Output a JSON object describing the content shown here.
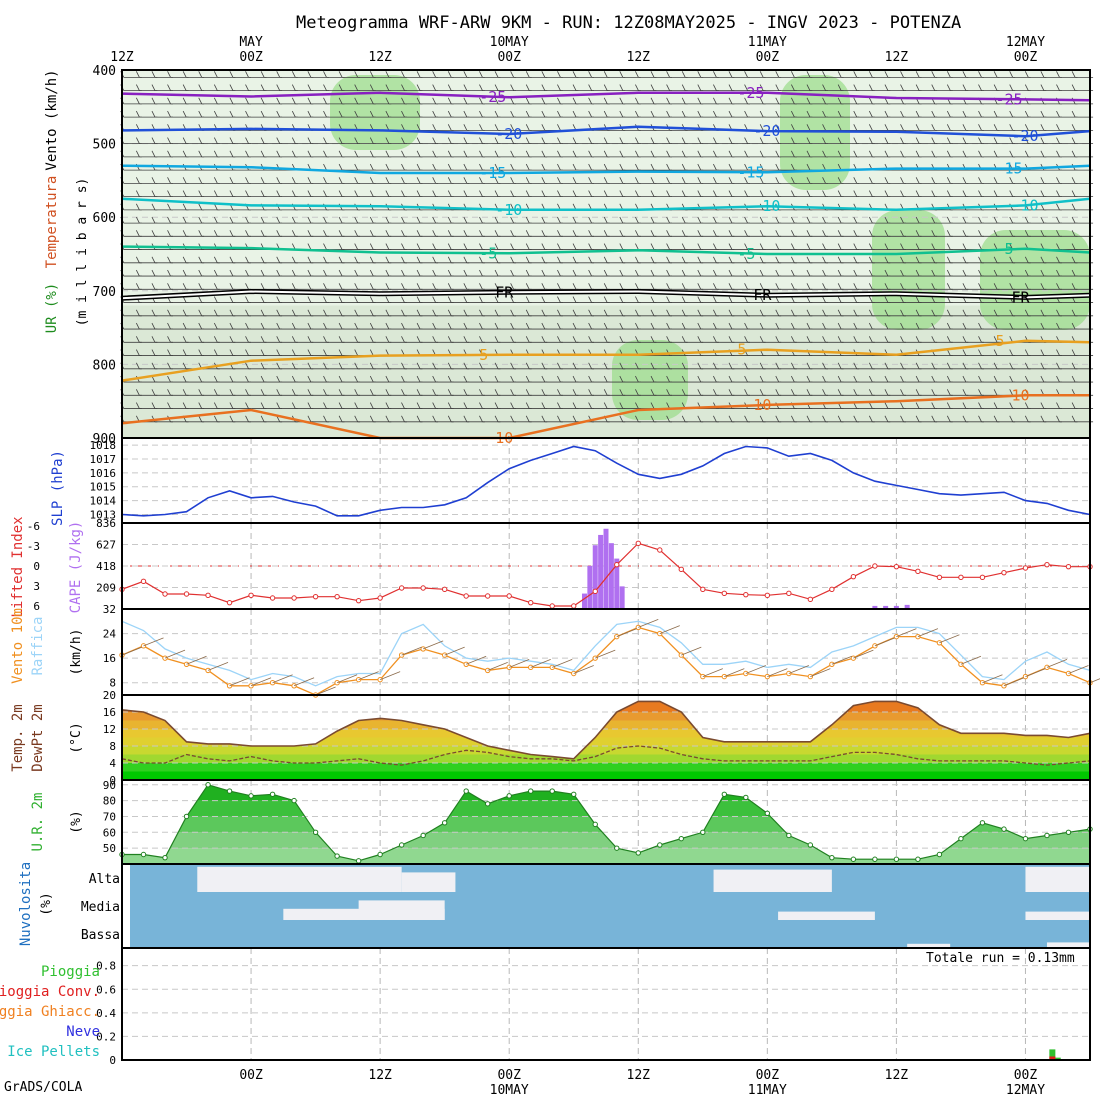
{
  "title": "Meteogramma WRF-ARW 9KM - RUN: 12Z08MAY2025 - INGV 2023 - POTENZA",
  "credit": "GrADS/COLA",
  "total_run": "Totale run = 0.13mm",
  "colors": {
    "slp": "#1f3fd1",
    "li": "#e03030",
    "cape": "#b070f0",
    "wind10": "#f09020",
    "gust": "#9cd4f8",
    "temp_line": "#7a4a30",
    "dew_line": "#7a4a30",
    "rh_fill": "#3cc83c",
    "cloud_bg": "#78b4d8",
    "cloud_fill": "#f0f0f4",
    "iso_purple": "#8820c0",
    "iso_blue": "#2050d8",
    "iso_cyan": "#10a8e0",
    "iso_teal": "#10c0c8",
    "iso_green": "#10c090",
    "iso_orange": "#e8a020",
    "iso_dorange": "#e87020"
  },
  "time_axis": {
    "top_labels": [
      {
        "hour": 0,
        "text": "12Z"
      },
      {
        "hour": 12,
        "text": "00Z",
        "date": "MAY"
      },
      {
        "hour": 24,
        "text": "12Z"
      },
      {
        "hour": 36,
        "text": "00Z",
        "date": "10MAY"
      },
      {
        "hour": 48,
        "text": "12Z"
      },
      {
        "hour": 60,
        "text": "00Z",
        "date": "11MAY"
      },
      {
        "hour": 72,
        "text": "12Z"
      },
      {
        "hour": 84,
        "text": "00Z",
        "date": "12MAY"
      }
    ],
    "bottom_labels": [
      {
        "hour": 12,
        "text": "00Z"
      },
      {
        "hour": 24,
        "text": "12Z"
      },
      {
        "hour": 36,
        "text": "00Z",
        "date": "10MAY"
      },
      {
        "hour": 48,
        "text": "12Z"
      },
      {
        "hour": 60,
        "text": "00Z",
        "date": "11MAY"
      },
      {
        "hour": 72,
        "text": "12Z"
      },
      {
        "hour": 84,
        "text": "00Z",
        "date": "12MAY"
      }
    ],
    "range_hours": [
      0,
      90
    ]
  },
  "panel_labels": {
    "upper": [
      {
        "text": "Vento (km/h)",
        "color": "#000000"
      },
      {
        "text": "Temperatura",
        "color": "rainbow"
      },
      {
        "text": "UR (%)",
        "color": "#30a030"
      },
      {
        "text": "(m i l l i b a r s)",
        "color": "#000000"
      }
    ],
    "slp": "SLP (hPa)",
    "li": "Lifted Index",
    "cape": "CAPE (J/kg)",
    "wind_a": "Vento 10m",
    "wind_b": "Raffica",
    "wind_unit": "(km/h)",
    "temp_a": "Temp. 2m",
    "temp_b": "DewPt 2m",
    "temp_unit": "(°C)",
    "rh_a": "U.R. 2m",
    "rh_unit": "(%)",
    "cloud_a": "Nuvolosita",
    "cloud_unit": "(%)",
    "precip": [
      "Pioggia",
      "Pioggia Conv.",
      "Pioggia Ghiacc.",
      "Neve",
      "Ice Pellets"
    ]
  },
  "chart_data": [
    {
      "type": "contour",
      "name": "upper-air",
      "ylabel": "millibars",
      "y_ticks": [
        400,
        500,
        600,
        700,
        800,
        900
      ],
      "ylim": [
        400,
        900
      ],
      "isotherms": [
        {
          "label": "-25",
          "color_key": "iso_purple",
          "x": [
            0,
            12,
            24,
            36,
            48,
            60,
            72,
            84,
            90
          ],
          "p": [
            432,
            436,
            431,
            437,
            431,
            431,
            438,
            440,
            441
          ]
        },
        {
          "label": "-20",
          "color_key": "iso_blue",
          "x": [
            0,
            12,
            24,
            36,
            48,
            60,
            72,
            84,
            90
          ],
          "p": [
            482,
            480,
            482,
            487,
            477,
            483,
            484,
            490,
            483
          ]
        },
        {
          "label": "-15",
          "color_key": "iso_cyan",
          "x": [
            0,
            12,
            24,
            36,
            48,
            60,
            72,
            84,
            90
          ],
          "p": [
            530,
            532,
            540,
            540,
            538,
            539,
            534,
            534,
            530
          ]
        },
        {
          "label": "-10",
          "color_key": "iso_teal",
          "x": [
            0,
            12,
            24,
            36,
            48,
            60,
            72,
            84,
            90
          ],
          "p": [
            575,
            584,
            585,
            590,
            590,
            585,
            590,
            584,
            575
          ]
        },
        {
          "label": "-5",
          "color_key": "iso_green",
          "x": [
            0,
            12,
            24,
            36,
            48,
            60,
            72,
            84,
            90
          ],
          "p": [
            640,
            642,
            648,
            649,
            645,
            650,
            650,
            643,
            648
          ]
        },
        {
          "label": "FR",
          "color_key": "black",
          "x": [
            0,
            12,
            24,
            36,
            48,
            60,
            72,
            84,
            90
          ],
          "p": [
            710,
            701,
            704,
            702,
            701,
            706,
            704,
            709,
            706
          ]
        },
        {
          "label": "5",
          "color_key": "iso_orange",
          "x": [
            0,
            12,
            24,
            36,
            48,
            60,
            72,
            84,
            90
          ],
          "p": [
            822,
            795,
            788,
            787,
            787,
            780,
            787,
            768,
            770
          ]
        },
        {
          "label": "10",
          "color_key": "iso_dorange",
          "x": [
            0,
            12,
            24,
            36,
            48,
            60,
            72,
            84,
            90
          ],
          "p": [
            880,
            862,
            900,
            900,
            862,
            855,
            850,
            842,
            842
          ]
        }
      ]
    },
    {
      "type": "line",
      "name": "slp",
      "ylabel": "SLP (hPa)",
      "y_ticks": [
        1013,
        1014,
        1015,
        1016,
        1017,
        1018
      ],
      "ylim": [
        1012.6,
        1018.3
      ],
      "x": [
        0,
        2,
        4,
        6,
        8,
        10,
        12,
        14,
        16,
        18,
        20,
        22,
        24,
        26,
        28,
        30,
        32,
        34,
        36,
        38,
        40,
        42,
        44,
        46,
        48,
        50,
        52,
        54,
        56,
        58,
        60,
        62,
        64,
        66,
        68,
        70,
        72,
        74,
        76,
        78,
        80,
        82,
        84,
        86,
        88,
        90
      ],
      "values": [
        1013.0,
        1012.9,
        1013.0,
        1013.2,
        1014.2,
        1014.7,
        1014.2,
        1014.3,
        1013.9,
        1013.6,
        1012.9,
        1012.9,
        1013.3,
        1013.5,
        1013.5,
        1013.7,
        1014.2,
        1015.3,
        1016.3,
        1016.9,
        1017.4,
        1017.9,
        1017.6,
        1016.7,
        1015.9,
        1015.6,
        1015.9,
        1016.5,
        1017.4,
        1017.9,
        1017.8,
        1017.2,
        1017.4,
        1016.9,
        1016.0,
        1015.4,
        1015.1,
        1014.8,
        1014.5,
        1014.4,
        1014.5,
        1014.6,
        1014.0,
        1013.8,
        1013.3,
        1013.0
      ]
    },
    {
      "type": "bar+line",
      "name": "cape-li",
      "li_label": "Lifted Index",
      "cape_label": "CAPE (J/kg)",
      "li_ticks": [
        -6,
        -3,
        0,
        3,
        6
      ],
      "cape_ticks": [
        209,
        418,
        627,
        836
      ],
      "x": [
        0,
        2,
        4,
        6,
        8,
        10,
        12,
        14,
        16,
        18,
        20,
        22,
        24,
        26,
        28,
        30,
        32,
        34,
        36,
        38,
        40,
        42,
        44,
        46,
        48,
        50,
        52,
        54,
        56,
        58,
        60,
        62,
        64,
        66,
        68,
        70,
        72,
        74,
        76,
        78,
        80,
        82,
        84,
        86,
        88,
        90
      ],
      "li": [
        3.5,
        2.3,
        4.2,
        4.2,
        4.4,
        5.5,
        4.4,
        4.8,
        4.8,
        4.6,
        4.6,
        5.2,
        4.8,
        3.3,
        3.3,
        3.5,
        4.5,
        4.5,
        4.5,
        5.5,
        6.0,
        6.0,
        3.8,
        -0.2,
        -3.4,
        -2.4,
        0.5,
        3.5,
        4.1,
        4.3,
        4.4,
        4.1,
        5.0,
        3.5,
        1.6,
        0.0,
        0.1,
        0.8,
        1.7,
        1.7,
        1.7,
        1.0,
        0.3,
        -0.2,
        0.1,
        0.1
      ],
      "cape_bars_x": [
        43,
        43.5,
        44,
        44.5,
        45,
        45.5,
        46,
        46.5,
        70,
        71,
        72,
        73
      ],
      "cape_bars": [
        150,
        420,
        620,
        720,
        780,
        640,
        490,
        220,
        30,
        30,
        30,
        40
      ]
    },
    {
      "type": "line",
      "name": "wind10",
      "ylabel": "(km/h)",
      "y_ticks": [
        8,
        16,
        24,
        32
      ],
      "ylim": [
        4,
        32
      ],
      "x": [
        0,
        2,
        4,
        6,
        8,
        10,
        12,
        14,
        16,
        18,
        20,
        22,
        24,
        26,
        28,
        30,
        32,
        34,
        36,
        38,
        40,
        42,
        44,
        46,
        48,
        50,
        52,
        54,
        56,
        58,
        60,
        62,
        64,
        66,
        68,
        70,
        72,
        74,
        76,
        78,
        80,
        82,
        84,
        86,
        88,
        90
      ],
      "series": [
        {
          "name": "Vento 10m",
          "color_key": "wind10",
          "values": [
            17,
            20,
            16,
            14,
            12,
            7,
            7,
            8,
            7,
            4,
            8,
            9,
            9,
            17,
            19,
            17,
            14,
            12,
            13,
            13,
            13,
            11,
            16,
            23,
            26,
            24,
            17,
            10,
            10,
            11,
            10,
            11,
            10,
            14,
            16,
            20,
            23,
            23,
            21,
            14,
            8,
            7,
            10,
            13,
            11,
            8
          ]
        },
        {
          "name": "Raffica",
          "color_key": "gust",
          "values": [
            28,
            25,
            19,
            16,
            14,
            12,
            9,
            11,
            10,
            7,
            10,
            11,
            11,
            24,
            27,
            20,
            16,
            15,
            16,
            15,
            14,
            12,
            20,
            27,
            28,
            26,
            21,
            14,
            14,
            15,
            13,
            14,
            13,
            18,
            20,
            23,
            26,
            26,
            24,
            17,
            10,
            9,
            15,
            18,
            14,
            12
          ]
        }
      ]
    },
    {
      "type": "area",
      "name": "temp-dewpt",
      "ylabel": "(°C)",
      "y_ticks": [
        0,
        4,
        8,
        12,
        16,
        20
      ],
      "ylim": [
        0,
        20
      ],
      "x": [
        0,
        2,
        4,
        6,
        8,
        10,
        12,
        14,
        16,
        18,
        20,
        22,
        24,
        26,
        28,
        30,
        32,
        34,
        36,
        38,
        40,
        42,
        44,
        46,
        48,
        50,
        52,
        54,
        56,
        58,
        60,
        62,
        64,
        66,
        68,
        70,
        72,
        74,
        76,
        78,
        80,
        82,
        84,
        86,
        88,
        90
      ],
      "series": [
        {
          "name": "Temp. 2m",
          "values": [
            16.5,
            16.0,
            14.0,
            9.0,
            8.5,
            8.5,
            8.0,
            8.0,
            8.0,
            8.5,
            11.5,
            14.0,
            14.5,
            14.0,
            13.0,
            12.0,
            10.0,
            8.0,
            7.0,
            6.0,
            5.5,
            5.0,
            10.0,
            16.0,
            18.5,
            18.5,
            16.0,
            10.0,
            9.0,
            9.0,
            9.0,
            9.0,
            9.0,
            13.0,
            17.5,
            18.5,
            18.5,
            17.0,
            13.0,
            11.0,
            11.0,
            11.0,
            10.5,
            10.5,
            10.0,
            11.0
          ]
        },
        {
          "name": "DewPt 2m",
          "values": [
            5.0,
            4.0,
            4.0,
            6.0,
            5.0,
            4.5,
            5.5,
            4.5,
            4.0,
            4.0,
            4.5,
            5.0,
            4.0,
            3.5,
            4.5,
            6.0,
            7.0,
            6.5,
            5.5,
            5.0,
            5.0,
            4.5,
            5.5,
            7.5,
            8.0,
            7.5,
            6.0,
            5.0,
            4.5,
            4.5,
            4.5,
            4.5,
            4.5,
            5.5,
            6.5,
            6.5,
            6.0,
            5.0,
            4.5,
            4.5,
            4.5,
            4.5,
            4.0,
            3.5,
            4.0,
            4.5
          ]
        }
      ]
    },
    {
      "type": "area",
      "name": "rh2m",
      "ylabel": "(%)",
      "y_ticks": [
        50,
        60,
        70,
        80,
        90
      ],
      "ylim": [
        40,
        93
      ],
      "x": [
        0,
        2,
        4,
        6,
        8,
        10,
        12,
        14,
        16,
        18,
        20,
        22,
        24,
        26,
        28,
        30,
        32,
        34,
        36,
        38,
        40,
        42,
        44,
        46,
        48,
        50,
        52,
        54,
        56,
        58,
        60,
        62,
        64,
        66,
        68,
        70,
        72,
        74,
        76,
        78,
        80,
        82,
        84,
        86,
        88,
        90
      ],
      "values": [
        46,
        46,
        44,
        70,
        90,
        86,
        83,
        84,
        80,
        60,
        45,
        42,
        46,
        52,
        58,
        66,
        86,
        78,
        83,
        86,
        86,
        84,
        65,
        50,
        47,
        52,
        56,
        60,
        84,
        82,
        72,
        58,
        52,
        44,
        43,
        43,
        43,
        43,
        46,
        56,
        66,
        62,
        56,
        58,
        60,
        62
      ]
    },
    {
      "type": "heatmap",
      "name": "cloud-cover",
      "ylabel": "(%)",
      "rows": [
        "Alta",
        "Media",
        "Bassa"
      ],
      "segments": {
        "Alta": [
          [
            7,
            26,
            0.9
          ],
          [
            26,
            31,
            0.7
          ],
          [
            55,
            66,
            0.8
          ],
          [
            84,
            90,
            0.9
          ]
        ],
        "Media": [
          [
            15,
            30,
            0.4
          ],
          [
            22,
            30,
            0.7
          ],
          [
            61,
            70,
            0.3
          ],
          [
            84,
            90,
            0.3
          ]
        ],
        "Bassa": [
          [
            73,
            77,
            0.15
          ],
          [
            86,
            90,
            0.2
          ]
        ]
      }
    },
    {
      "type": "bar",
      "name": "precipitation",
      "y_ticks": [
        0,
        0.2,
        0.4,
        0.6,
        0.8
      ],
      "ylim": [
        0,
        0.95
      ],
      "series": [
        {
          "name": "Pioggia",
          "color": "#30c030",
          "values": [
            [
              86.5,
              0.09
            ],
            [
              87.0,
              0.02
            ]
          ]
        },
        {
          "name": "Pioggia Conv.",
          "color": "#e02020",
          "values": [
            [
              86.5,
              0.03
            ]
          ]
        }
      ]
    }
  ]
}
